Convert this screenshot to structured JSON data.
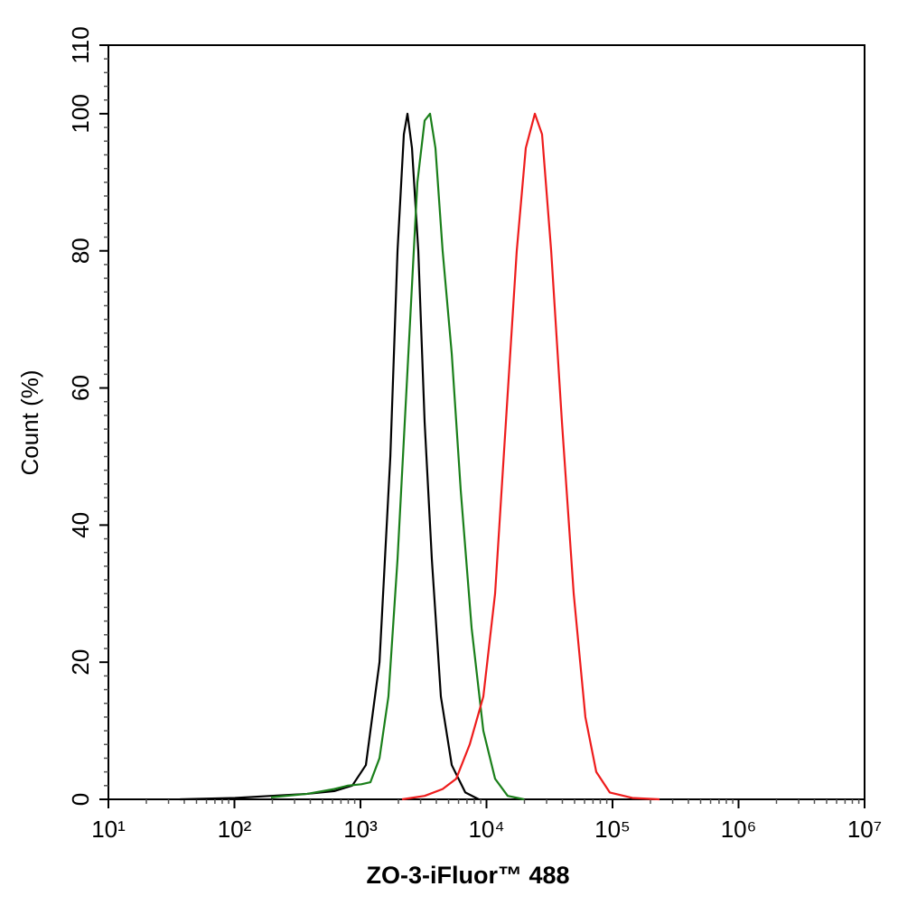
{
  "chart_data": {
    "type": "line",
    "x_label": "ZO-3-iFluor™ 488",
    "y_label": "Count  (%)",
    "xlog": true,
    "xlim": [
      10,
      10000000
    ],
    "xticks": [
      {
        "value": 10,
        "label": "10¹"
      },
      {
        "value": 100,
        "label": "10²"
      },
      {
        "value": 1000,
        "label": "10³"
      },
      {
        "value": 10000,
        "label": "10⁴"
      },
      {
        "value": 100000,
        "label": "10⁵"
      },
      {
        "value": 1000000,
        "label": "10⁶"
      },
      {
        "value": 10000000,
        "label": "10⁷"
      }
    ],
    "ylim": [
      0,
      110
    ],
    "yticks": [
      0,
      20,
      40,
      60,
      80,
      100,
      110
    ],
    "series": [
      {
        "color": "#000000",
        "x": [
          37,
          101,
          195,
          378,
          619,
          861,
          1104,
          1416,
          1726,
          1968,
          2209,
          2360,
          2563,
          2877,
          3230,
          3685,
          4345,
          5300,
          6790,
          8690
        ],
        "values": [
          0,
          0.2,
          0.5,
          0.8,
          1.2,
          2,
          5,
          20,
          50,
          80,
          97,
          100,
          95,
          80,
          55,
          35,
          15,
          5,
          1,
          0
        ]
      },
      {
        "color": "#1a7f1a",
        "x": [
          195,
          378,
          619,
          794,
          1016,
          1200,
          1416,
          1667,
          1968,
          2400,
          2830,
          3230,
          3565,
          3935,
          4487,
          5300,
          6250,
          7620,
          9440,
          11700,
          14730,
          19860
        ],
        "values": [
          0.3,
          0.8,
          1.5,
          2,
          2.2,
          2.5,
          6,
          15,
          35,
          65,
          90,
          99,
          100,
          95,
          80,
          65,
          45,
          25,
          10,
          3,
          0.5,
          0
        ]
      },
      {
        "color": "#ee1c1c",
        "x": [
          2140,
          3230,
          4487,
          5750,
          7360,
          9440,
          11700,
          14250,
          17380,
          20500,
          24200,
          27600,
          32600,
          39700,
          49200,
          60900,
          74300,
          95100,
          143800,
          236000
        ],
        "values": [
          0,
          0.5,
          1.5,
          3,
          8,
          15,
          30,
          55,
          80,
          95,
          100,
          97,
          80,
          55,
          30,
          12,
          4,
          1,
          0.2,
          0
        ]
      }
    ]
  }
}
